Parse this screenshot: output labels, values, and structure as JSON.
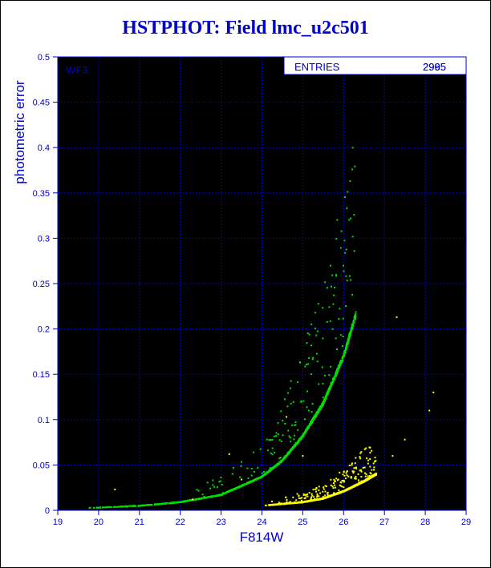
{
  "chart_data": {
    "type": "scatter",
    "title": "HSTPHOT: Field lmc_u2c501",
    "xlabel": "F814W",
    "ylabel": "photometric error",
    "xlim": [
      19,
      29
    ],
    "ylim": [
      0,
      0.5
    ],
    "x_ticks": [
      "19",
      "20",
      "21",
      "22",
      "23",
      "24",
      "25",
      "26",
      "27",
      "28",
      "29"
    ],
    "y_ticks": [
      "0",
      "0.05",
      "0.1",
      "0.15",
      "0.2",
      "0.25",
      "0.3",
      "0.35",
      "0.4",
      "0.45",
      "0.5"
    ],
    "grid": true,
    "panel_label": "WF3",
    "stats_box": {
      "label": "ENTRIES",
      "values": [
        "2965",
        "2995"
      ]
    },
    "series": [
      {
        "color": "#00e000",
        "curve_points": [
          [
            19.0,
            0.002
          ],
          [
            20.0,
            0.003
          ],
          [
            21.0,
            0.005
          ],
          [
            22.0,
            0.009
          ],
          [
            23.0,
            0.017
          ],
          [
            24.0,
            0.037
          ],
          [
            24.5,
            0.055
          ],
          [
            25.0,
            0.082
          ],
          [
            25.5,
            0.118
          ],
          [
            26.0,
            0.17
          ],
          [
            26.3,
            0.216
          ]
        ]
      },
      {
        "color": "#ffff00",
        "curve_points": [
          [
            24.0,
            0.005
          ],
          [
            24.5,
            0.007
          ],
          [
            25.0,
            0.009
          ],
          [
            25.5,
            0.013
          ],
          [
            26.0,
            0.021
          ],
          [
            26.5,
            0.032
          ],
          [
            26.8,
            0.04
          ]
        ],
        "outliers": [
          [
            20.4,
            0.023
          ],
          [
            22.3,
            0.012
          ],
          [
            23.2,
            0.062
          ],
          [
            23.5,
            0.034
          ],
          [
            24.6,
            0.103
          ],
          [
            25.0,
            0.06
          ],
          [
            27.2,
            0.06
          ],
          [
            27.3,
            0.213
          ],
          [
            27.5,
            0.078
          ],
          [
            28.2,
            0.13
          ],
          [
            28.1,
            0.11
          ]
        ]
      }
    ]
  }
}
